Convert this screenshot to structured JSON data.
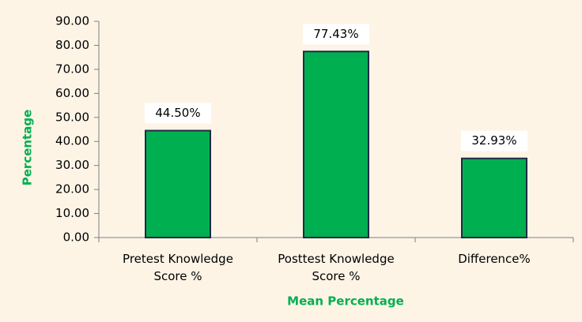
{
  "chart_data": {
    "type": "bar",
    "categories": [
      "Pretest Knowledge Score %",
      "Posttest Knowledge Score %",
      "Difference%"
    ],
    "values": [
      44.5,
      77.43,
      32.93
    ],
    "value_labels": [
      "44.50%",
      "77.43%",
      "32.93%"
    ],
    "color": "#00b050",
    "y_label": "Percentage",
    "x_label": "Mean Percentage",
    "ylim": [
      0,
      90
    ],
    "yticks": [
      {
        "value": 0,
        "label": "0.00"
      },
      {
        "value": 10,
        "label": "10.00"
      },
      {
        "value": 20,
        "label": "20.00"
      },
      {
        "value": 30,
        "label": "30.00"
      },
      {
        "value": 40,
        "label": "40.00"
      },
      {
        "value": 50,
        "label": "50.00"
      },
      {
        "value": 60,
        "label": "60.00"
      },
      {
        "value": 70,
        "label": "70.00"
      },
      {
        "value": 80,
        "label": "80.00"
      },
      {
        "value": 90,
        "label": "90.00"
      }
    ]
  }
}
